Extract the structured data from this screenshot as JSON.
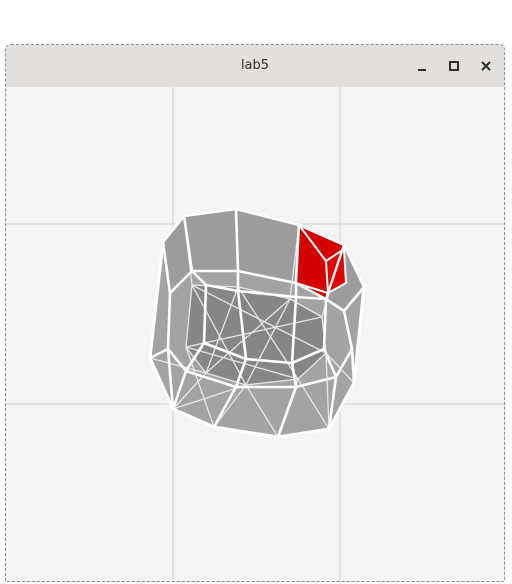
{
  "window": {
    "title": "lab5",
    "controls": [
      {
        "name": "minimize",
        "icon": "minimize-icon"
      },
      {
        "name": "maximize",
        "icon": "maximize-icon"
      },
      {
        "name": "close",
        "icon": "close-icon"
      }
    ]
  },
  "viewport": {
    "background": "#f5f4f2",
    "grid_color": "#d4d1ce",
    "mesh_fill": "#a3a3a3",
    "mesh_edge": "#ffffff",
    "selected_face_color": "#d40000"
  }
}
